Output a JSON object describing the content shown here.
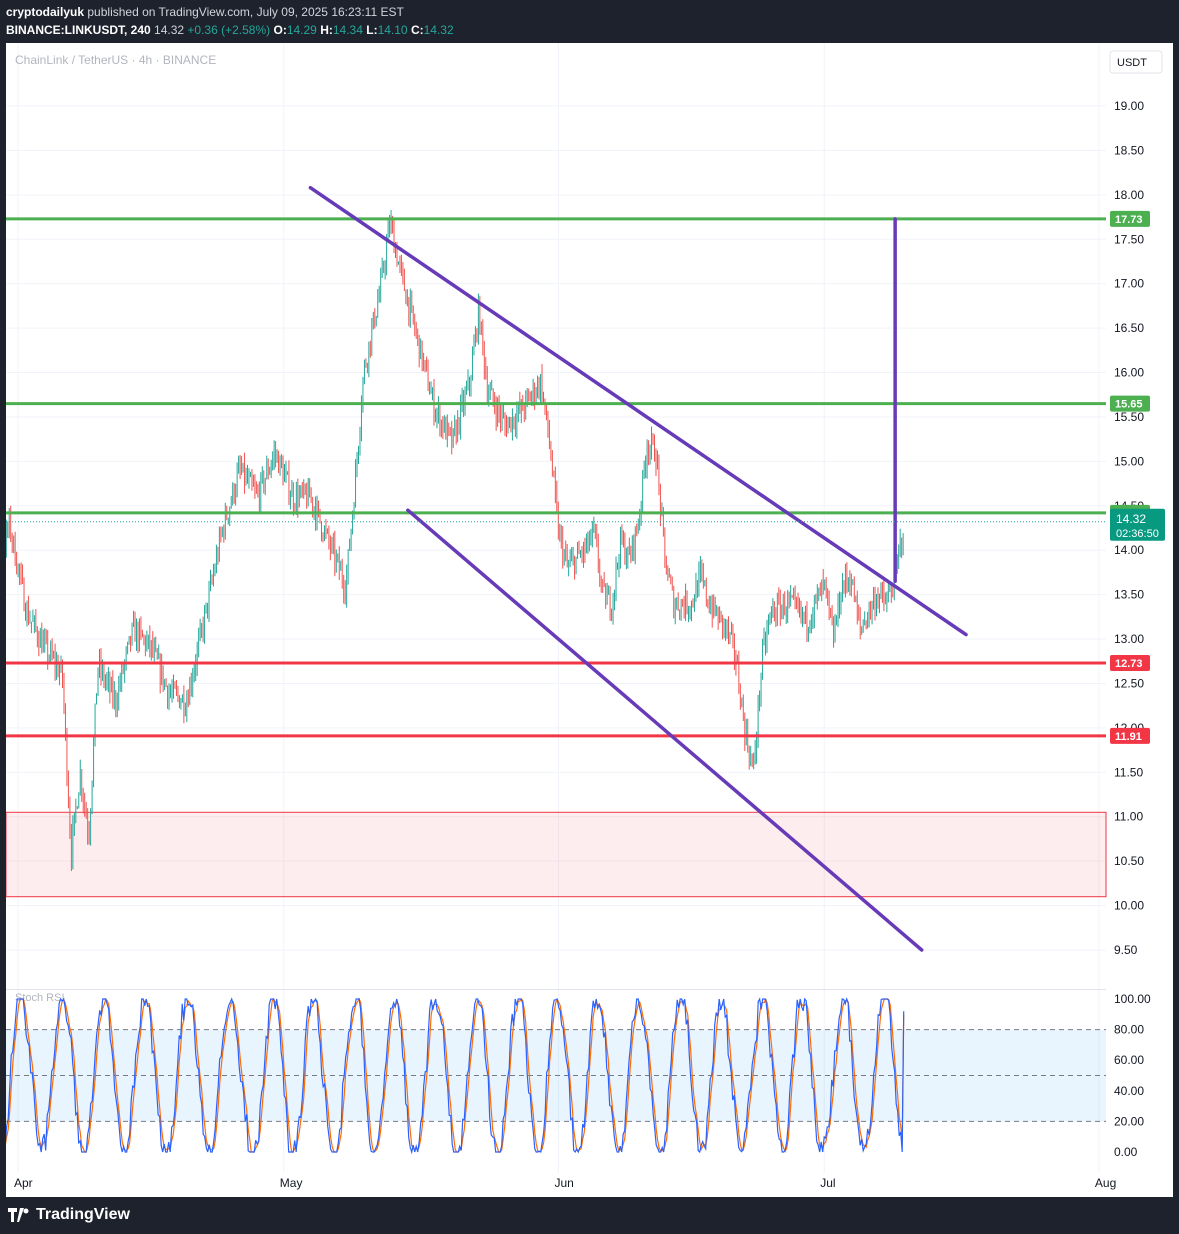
{
  "header": {
    "publisher": "cryptodailyuk",
    "published_text": "published on TradingView.com, July 09, 2025 16:23:11 EST",
    "symbol": "BINANCE:LINKUSDT, 240",
    "last": "14.32",
    "change": "+0.36 (+2.58%)",
    "o_label": "O:",
    "o": "14.29",
    "h_label": "H:",
    "h": "14.34",
    "l_label": "L:",
    "l": "14.10",
    "c_label": "C:",
    "c": "14.32"
  },
  "chart": {
    "legend": "ChainLink / TetherUS · 4h · BINANCE",
    "currency": "USDT",
    "current_price": "14.32",
    "countdown": "02:36:50",
    "indicator": "Stoch RSI",
    "colors": {
      "support": "#f23645",
      "resistance": "#4caf50",
      "trendline": "#673ab7",
      "up": "#26a69a",
      "down": "#ef5350",
      "k": "#2962ff",
      "d": "#ff6d00"
    }
  },
  "footer": {
    "brand": "TradingView"
  },
  "chart_data": {
    "type": "candlestick",
    "price_axis": {
      "min": 9.5,
      "max": 19.0,
      "ticks": [
        "19.00",
        "18.50",
        "18.00",
        "17.50",
        "17.00",
        "16.50",
        "16.00",
        "15.50",
        "15.00",
        "14.50",
        "14.00",
        "13.50",
        "13.00",
        "12.50",
        "12.00",
        "11.50",
        "11.00",
        "10.50",
        "10.00",
        "9.50"
      ]
    },
    "time_axis": {
      "labels": [
        "Apr",
        "May",
        "Jun",
        "Jul",
        "Aug"
      ]
    },
    "levels": [
      {
        "label": "17.73",
        "value": 17.73,
        "kind": "resistance"
      },
      {
        "label": "15.65",
        "value": 15.65,
        "kind": "resistance"
      },
      {
        "label": "14.42",
        "value": 14.42,
        "kind": "resistance"
      },
      {
        "label": "12.73",
        "value": 12.73,
        "kind": "support"
      },
      {
        "label": "11.91",
        "value": 11.91,
        "kind": "support"
      }
    ],
    "zone": {
      "from": 10.1,
      "to": 11.05
    },
    "trendlines": [
      {
        "name": "upper",
        "points": [
          [
            "2025-05-04",
            18.08
          ],
          [
            "2025-07-17",
            13.05
          ]
        ]
      },
      {
        "name": "lower",
        "points": [
          [
            "2025-05-15",
            14.45
          ],
          [
            "2025-07-12",
            9.5
          ]
        ]
      },
      {
        "name": "target",
        "points": [
          [
            "2025-07-09",
            13.65
          ],
          [
            "2025-07-09",
            17.73
          ]
        ]
      }
    ],
    "price_path": [
      [
        "2025-03-27",
        13.8
      ],
      [
        "2025-03-29",
        13.4
      ],
      [
        "2025-03-31",
        14.3
      ],
      [
        "2025-04-02",
        13.3
      ],
      [
        "2025-04-04",
        12.9
      ],
      [
        "2025-04-06",
        12.6
      ],
      [
        "2025-04-07",
        10.6
      ],
      [
        "2025-04-08",
        11.5
      ],
      [
        "2025-04-09",
        10.8
      ],
      [
        "2025-04-10",
        12.7
      ],
      [
        "2025-04-12",
        12.3
      ],
      [
        "2025-04-14",
        13.1
      ],
      [
        "2025-04-16",
        12.9
      ],
      [
        "2025-04-18",
        12.4
      ],
      [
        "2025-04-20",
        12.3
      ],
      [
        "2025-04-22",
        13.2
      ],
      [
        "2025-04-24",
        14.2
      ],
      [
        "2025-04-26",
        14.9
      ],
      [
        "2025-04-28",
        14.6
      ],
      [
        "2025-04-30",
        15.1
      ],
      [
        "2025-05-02",
        14.6
      ],
      [
        "2025-05-04",
        14.6
      ],
      [
        "2025-05-06",
        14.1
      ],
      [
        "2025-05-08",
        13.6
      ],
      [
        "2025-05-09",
        14.7
      ],
      [
        "2025-05-10",
        16.0
      ],
      [
        "2025-05-12",
        17.0
      ],
      [
        "2025-05-13",
        17.7
      ],
      [
        "2025-05-14",
        17.2
      ],
      [
        "2025-05-16",
        16.4
      ],
      [
        "2025-05-18",
        15.6
      ],
      [
        "2025-05-20",
        15.2
      ],
      [
        "2025-05-22",
        15.9
      ],
      [
        "2025-05-23",
        16.7
      ],
      [
        "2025-05-24",
        15.8
      ],
      [
        "2025-05-26",
        15.4
      ],
      [
        "2025-05-28",
        15.6
      ],
      [
        "2025-05-30",
        15.9
      ],
      [
        "2025-05-31",
        15.2
      ],
      [
        "2025-06-01",
        14.2
      ],
      [
        "2025-06-02",
        13.8
      ],
      [
        "2025-06-04",
        14.0
      ],
      [
        "2025-06-05",
        14.2
      ],
      [
        "2025-06-06",
        13.5
      ],
      [
        "2025-06-07",
        13.4
      ],
      [
        "2025-06-08",
        14.1
      ],
      [
        "2025-06-09",
        13.9
      ],
      [
        "2025-06-10",
        14.3
      ],
      [
        "2025-06-11",
        15.2
      ],
      [
        "2025-06-12",
        15.1
      ],
      [
        "2025-06-13",
        13.9
      ],
      [
        "2025-06-14",
        13.4
      ],
      [
        "2025-06-16",
        13.4
      ],
      [
        "2025-06-17",
        13.7
      ],
      [
        "2025-06-18",
        13.4
      ],
      [
        "2025-06-20",
        13.1
      ],
      [
        "2025-06-21",
        12.8
      ],
      [
        "2025-06-22",
        12.0
      ],
      [
        "2025-06-23",
        11.5
      ],
      [
        "2025-06-24",
        12.8
      ],
      [
        "2025-06-25",
        13.3
      ],
      [
        "2025-06-27",
        13.4
      ],
      [
        "2025-06-29",
        13.2
      ],
      [
        "2025-07-01",
        13.6
      ],
      [
        "2025-07-02",
        13.0
      ],
      [
        "2025-07-03",
        13.6
      ],
      [
        "2025-07-04",
        13.7
      ],
      [
        "2025-07-05",
        13.1
      ],
      [
        "2025-07-06",
        13.3
      ],
      [
        "2025-07-07",
        13.5
      ],
      [
        "2025-07-08",
        13.4
      ],
      [
        "2025-07-09",
        13.7
      ],
      [
        "2025-07-10",
        14.32
      ]
    ],
    "stoch_axis": {
      "min": 0,
      "max": 100,
      "ticks": [
        "100.00",
        "80.00",
        "60.00",
        "40.00",
        "20.00",
        "0.00"
      ],
      "band": [
        20,
        80
      ]
    },
    "stoch_k_last": 92,
    "stoch_d_last": 90
  }
}
